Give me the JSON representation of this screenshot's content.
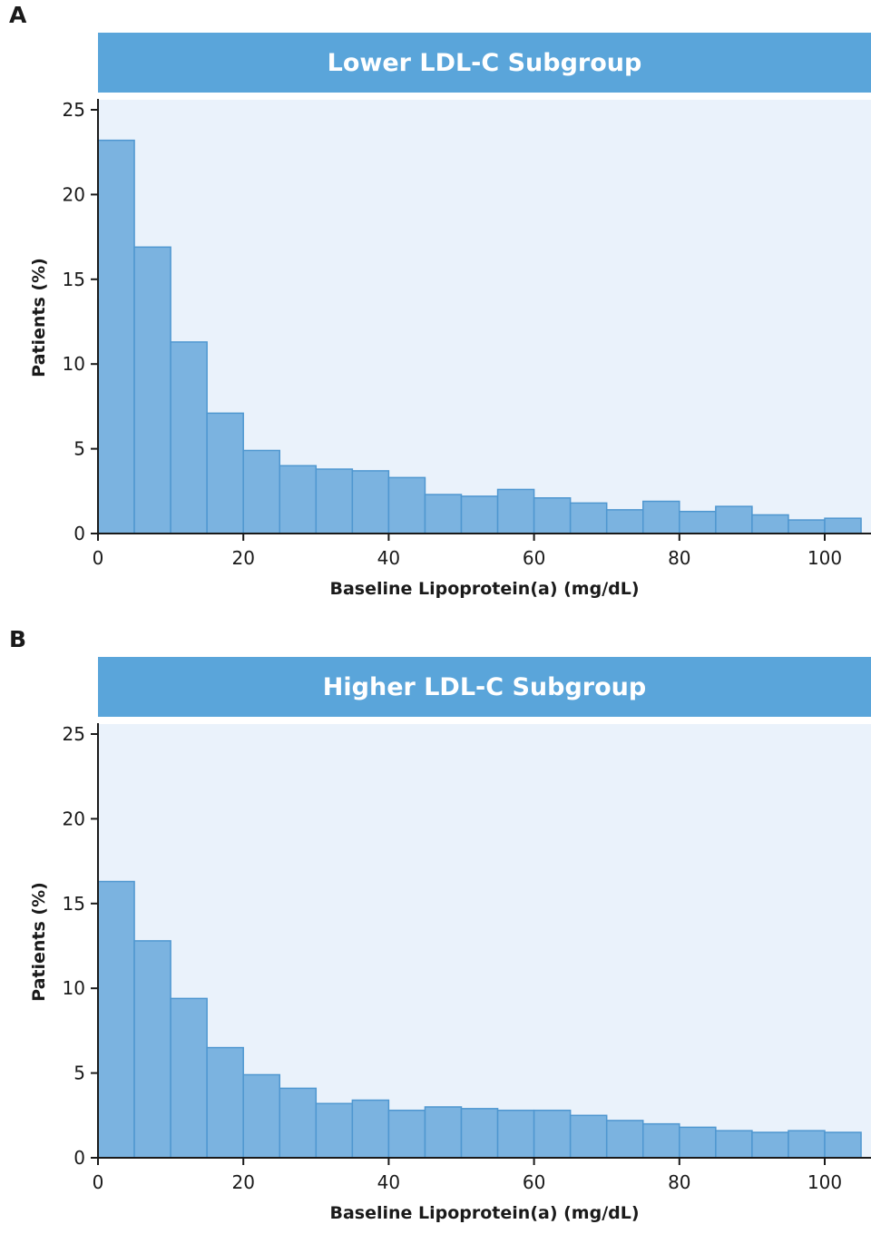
{
  "colors": {
    "title_bar": "#5aa5da",
    "plot_background": "#eaf2fb",
    "bar_fill": "#7bb3e0",
    "bar_stroke": "#4f97d0",
    "axis": "#1a1a1a"
  },
  "chart_data": [
    {
      "panel_label": "A",
      "type": "bar",
      "title": "Lower LDL-C Subgroup",
      "xlabel": "Baseline Lipoprotein(a) (mg/dL)",
      "ylabel": "Patients (%)",
      "xlim": [
        0,
        105
      ],
      "ylim": [
        0,
        25
      ],
      "xticks": [
        "0",
        "20",
        "40",
        "60",
        "80",
        "100"
      ],
      "yticks": [
        "0",
        "5",
        "10",
        "15",
        "20",
        "25"
      ],
      "grid": false,
      "bin_width": 5,
      "bin_starts": [
        0,
        5,
        10,
        15,
        20,
        25,
        30,
        35,
        40,
        45,
        50,
        55,
        60,
        65,
        70,
        75,
        80,
        85,
        90,
        95,
        100
      ],
      "values": [
        23.2,
        16.9,
        11.3,
        7.1,
        4.9,
        4.0,
        3.8,
        3.7,
        3.3,
        2.3,
        2.2,
        2.6,
        2.1,
        1.8,
        1.4,
        1.9,
        1.3,
        1.6,
        1.1,
        0.8,
        0.9
      ]
    },
    {
      "panel_label": "B",
      "type": "bar",
      "title": "Higher LDL-C Subgroup",
      "xlabel": "Baseline Lipoprotein(a) (mg/dL)",
      "ylabel": "Patients (%)",
      "xlim": [
        0,
        105
      ],
      "ylim": [
        0,
        25
      ],
      "xticks": [
        "0",
        "20",
        "40",
        "60",
        "80",
        "100"
      ],
      "yticks": [
        "0",
        "5",
        "10",
        "15",
        "20",
        "25"
      ],
      "grid": false,
      "bin_width": 5,
      "bin_starts": [
        0,
        5,
        10,
        15,
        20,
        25,
        30,
        35,
        40,
        45,
        50,
        55,
        60,
        65,
        70,
        75,
        80,
        85,
        90,
        95,
        100
      ],
      "values": [
        16.3,
        12.8,
        9.4,
        6.5,
        4.9,
        4.1,
        3.2,
        3.4,
        2.8,
        3.0,
        2.9,
        2.8,
        2.8,
        2.5,
        2.2,
        2.0,
        1.8,
        1.6,
        1.5,
        1.6,
        1.5
      ]
    }
  ]
}
